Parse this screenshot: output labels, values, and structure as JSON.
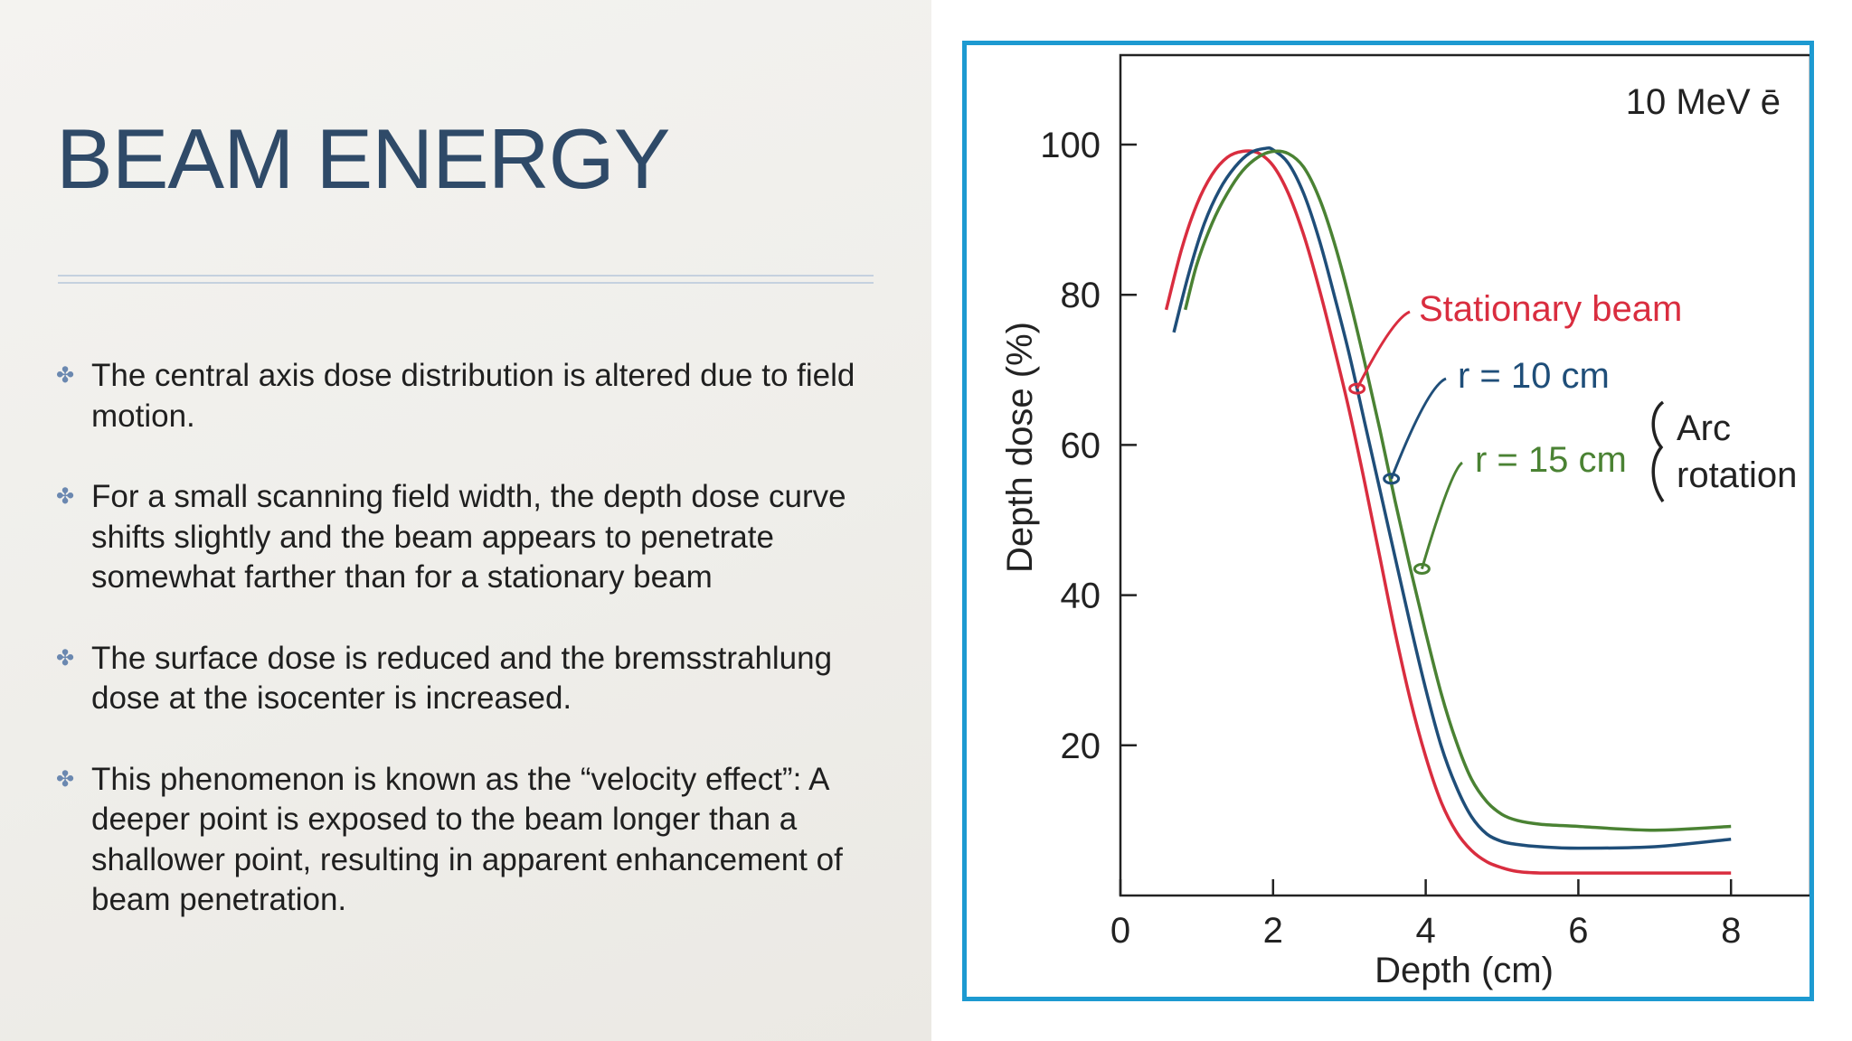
{
  "slide": {
    "title": "BEAM ENERGY",
    "bullets": [
      {
        "icon": "sparkle-bullet-icon",
        "text": "The central axis dose distribution is altered due to field motion."
      },
      {
        "icon": "sparkle-bullet-icon",
        "text": "For a small scanning field width, the depth dose curve shifts slightly and the beam appears to penetrate somewhat farther than for a stationary beam"
      },
      {
        "icon": "sparkle-bullet-icon",
        "text": "The surface dose is reduced and the bremsstrahlung dose at the isocenter is increased."
      },
      {
        "icon": "sparkle-bullet-icon",
        "text": "This phenomenon is known as the “velocity effect”: A deeper point is exposed to the beam longer than a shallower point, resulting in apparent enhancement of beam penetration."
      }
    ],
    "colors": {
      "title": "#2f4a68",
      "frame": "#1d9ad1",
      "bullet_icon": "#6b88b0"
    }
  },
  "chart_data": {
    "type": "line",
    "title": "10 MeV ē",
    "xlabel": "Depth (cm)",
    "ylabel": "Depth dose (%)",
    "xlim": [
      0,
      9
    ],
    "ylim": [
      0,
      110
    ],
    "xticks": [
      0,
      2,
      4,
      6,
      8
    ],
    "yticks": [
      20,
      40,
      60,
      80,
      100
    ],
    "grid": false,
    "arc_label": "Arc rotation",
    "series": [
      {
        "name": "Stationary beam",
        "color": "#d92d3f",
        "x": [
          0.6,
          0.8,
          1.0,
          1.2,
          1.4,
          1.6,
          1.8,
          2.0,
          2.2,
          2.4,
          2.6,
          2.8,
          3.0,
          3.2,
          3.4,
          3.6,
          3.8,
          4.0,
          4.2,
          4.4,
          4.6,
          4.8,
          5.0,
          5.2,
          5.5,
          6.0,
          7.0,
          8.0
        ],
        "y": [
          78,
          86,
          92,
          96,
          98.3,
          99.1,
          98.9,
          97.2,
          93.5,
          88,
          81,
          73,
          64.5,
          55,
          45,
          35,
          26,
          18.5,
          12.5,
          8.5,
          6,
          4.5,
          3.7,
          3.2,
          3,
          3,
          3,
          3
        ]
      },
      {
        "name": "r = 10 cm",
        "color": "#1f4e79",
        "x": [
          0.7,
          0.9,
          1.1,
          1.3,
          1.5,
          1.7,
          1.9,
          2.0,
          2.2,
          2.4,
          2.6,
          2.8,
          3.0,
          3.2,
          3.4,
          3.6,
          3.8,
          4.0,
          4.2,
          4.4,
          4.6,
          4.8,
          5.0,
          5.2,
          5.5,
          6.0,
          7.0,
          8.0
        ],
        "y": [
          75,
          83,
          89.5,
          94,
          97,
          98.9,
          99.5,
          99.3,
          97.5,
          93.5,
          87.5,
          80,
          72,
          63,
          54,
          45,
          36,
          27.5,
          20,
          14.5,
          10.5,
          8.2,
          7.2,
          6.8,
          6.5,
          6.3,
          6.5,
          7.5
        ]
      },
      {
        "name": "r = 15 cm",
        "color": "#4a8233",
        "x": [
          0.85,
          1.0,
          1.2,
          1.4,
          1.6,
          1.8,
          2.0,
          2.2,
          2.4,
          2.6,
          2.8,
          3.0,
          3.2,
          3.4,
          3.6,
          3.8,
          4.0,
          4.2,
          4.4,
          4.6,
          4.8,
          5.0,
          5.2,
          5.5,
          6.0,
          7.0,
          8.0
        ],
        "y": [
          78,
          84,
          89.5,
          93.5,
          96.5,
          98.3,
          99.1,
          98.8,
          97,
          93,
          87,
          79.5,
          71,
          62,
          52.5,
          43.5,
          35,
          27,
          20.5,
          15.5,
          12.5,
          10.8,
          10,
          9.5,
          9.2,
          8.7,
          9.2
        ]
      }
    ],
    "annotations": [
      {
        "text": "Stationary beam",
        "points_to_series": 0,
        "at_x": 3.1,
        "at_y": 67.5
      },
      {
        "text": "r = 10 cm",
        "points_to_series": 1,
        "at_x": 3.55,
        "at_y": 55.5
      },
      {
        "text": "r = 15 cm",
        "points_to_series": 2,
        "at_x": 3.95,
        "at_y": 43.5
      }
    ]
  }
}
